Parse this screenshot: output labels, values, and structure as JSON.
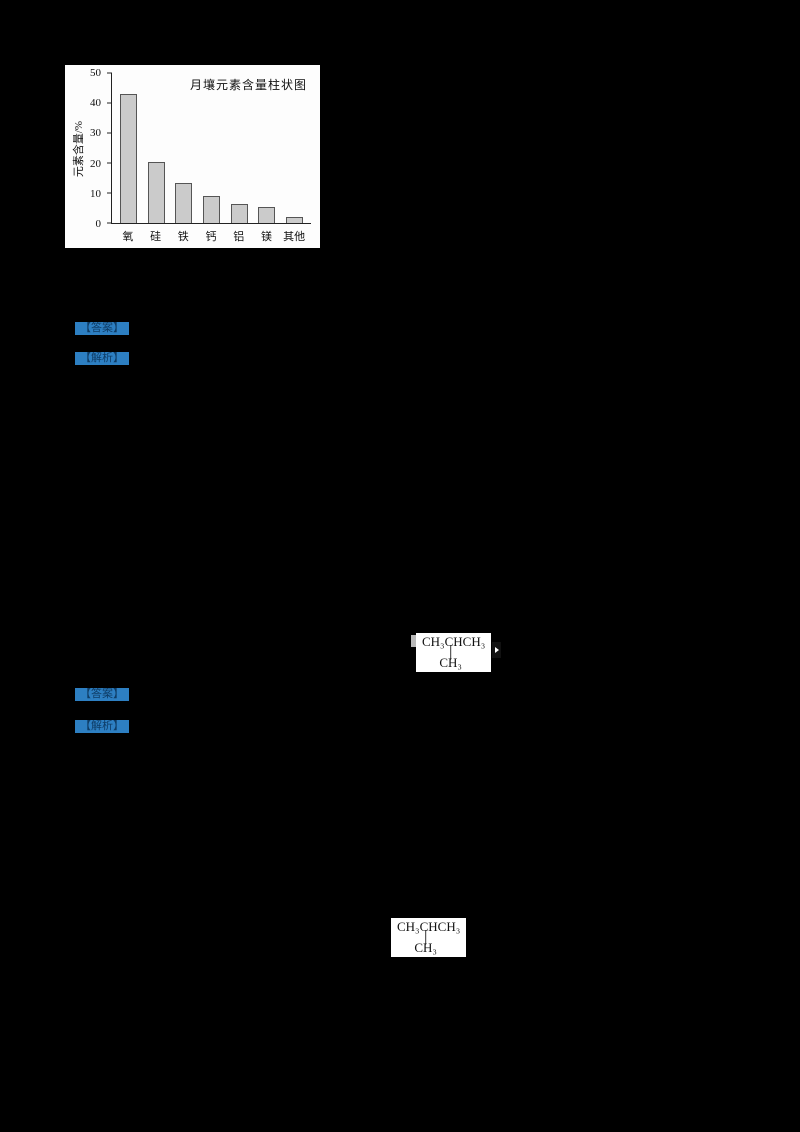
{
  "chart_data": {
    "type": "bar",
    "title": "月壤元素含量柱状图",
    "xlabel": "",
    "ylabel": "元素含量/%",
    "categories": [
      "氧",
      "硅",
      "铁",
      "钙",
      "铝",
      "镁",
      "其他"
    ],
    "values": [
      43,
      20.5,
      13.5,
      9,
      6.5,
      5.5,
      2
    ],
    "ylim": [
      0,
      50
    ],
    "yticks": [
      0,
      10,
      20,
      30,
      40,
      50
    ],
    "grid": false,
    "legend": false,
    "bar_color": "#cbcbcb"
  },
  "badges": {
    "answer1": "【答案】",
    "analysis1": "【解析】",
    "answer2": "【答案】",
    "analysis2": "【解析】"
  },
  "structures": {
    "s1": {
      "top": "CH₃CHCH₃",
      "bond": "│",
      "bottom": "CH₃"
    },
    "s2": {
      "top": "CH₃CHCH₃",
      "bond": "│",
      "bottom": "CH₃"
    }
  },
  "colors": {
    "page_background": "#000000",
    "badge_background": "#2d7fc2",
    "chart_background": "#fdfdfd"
  }
}
